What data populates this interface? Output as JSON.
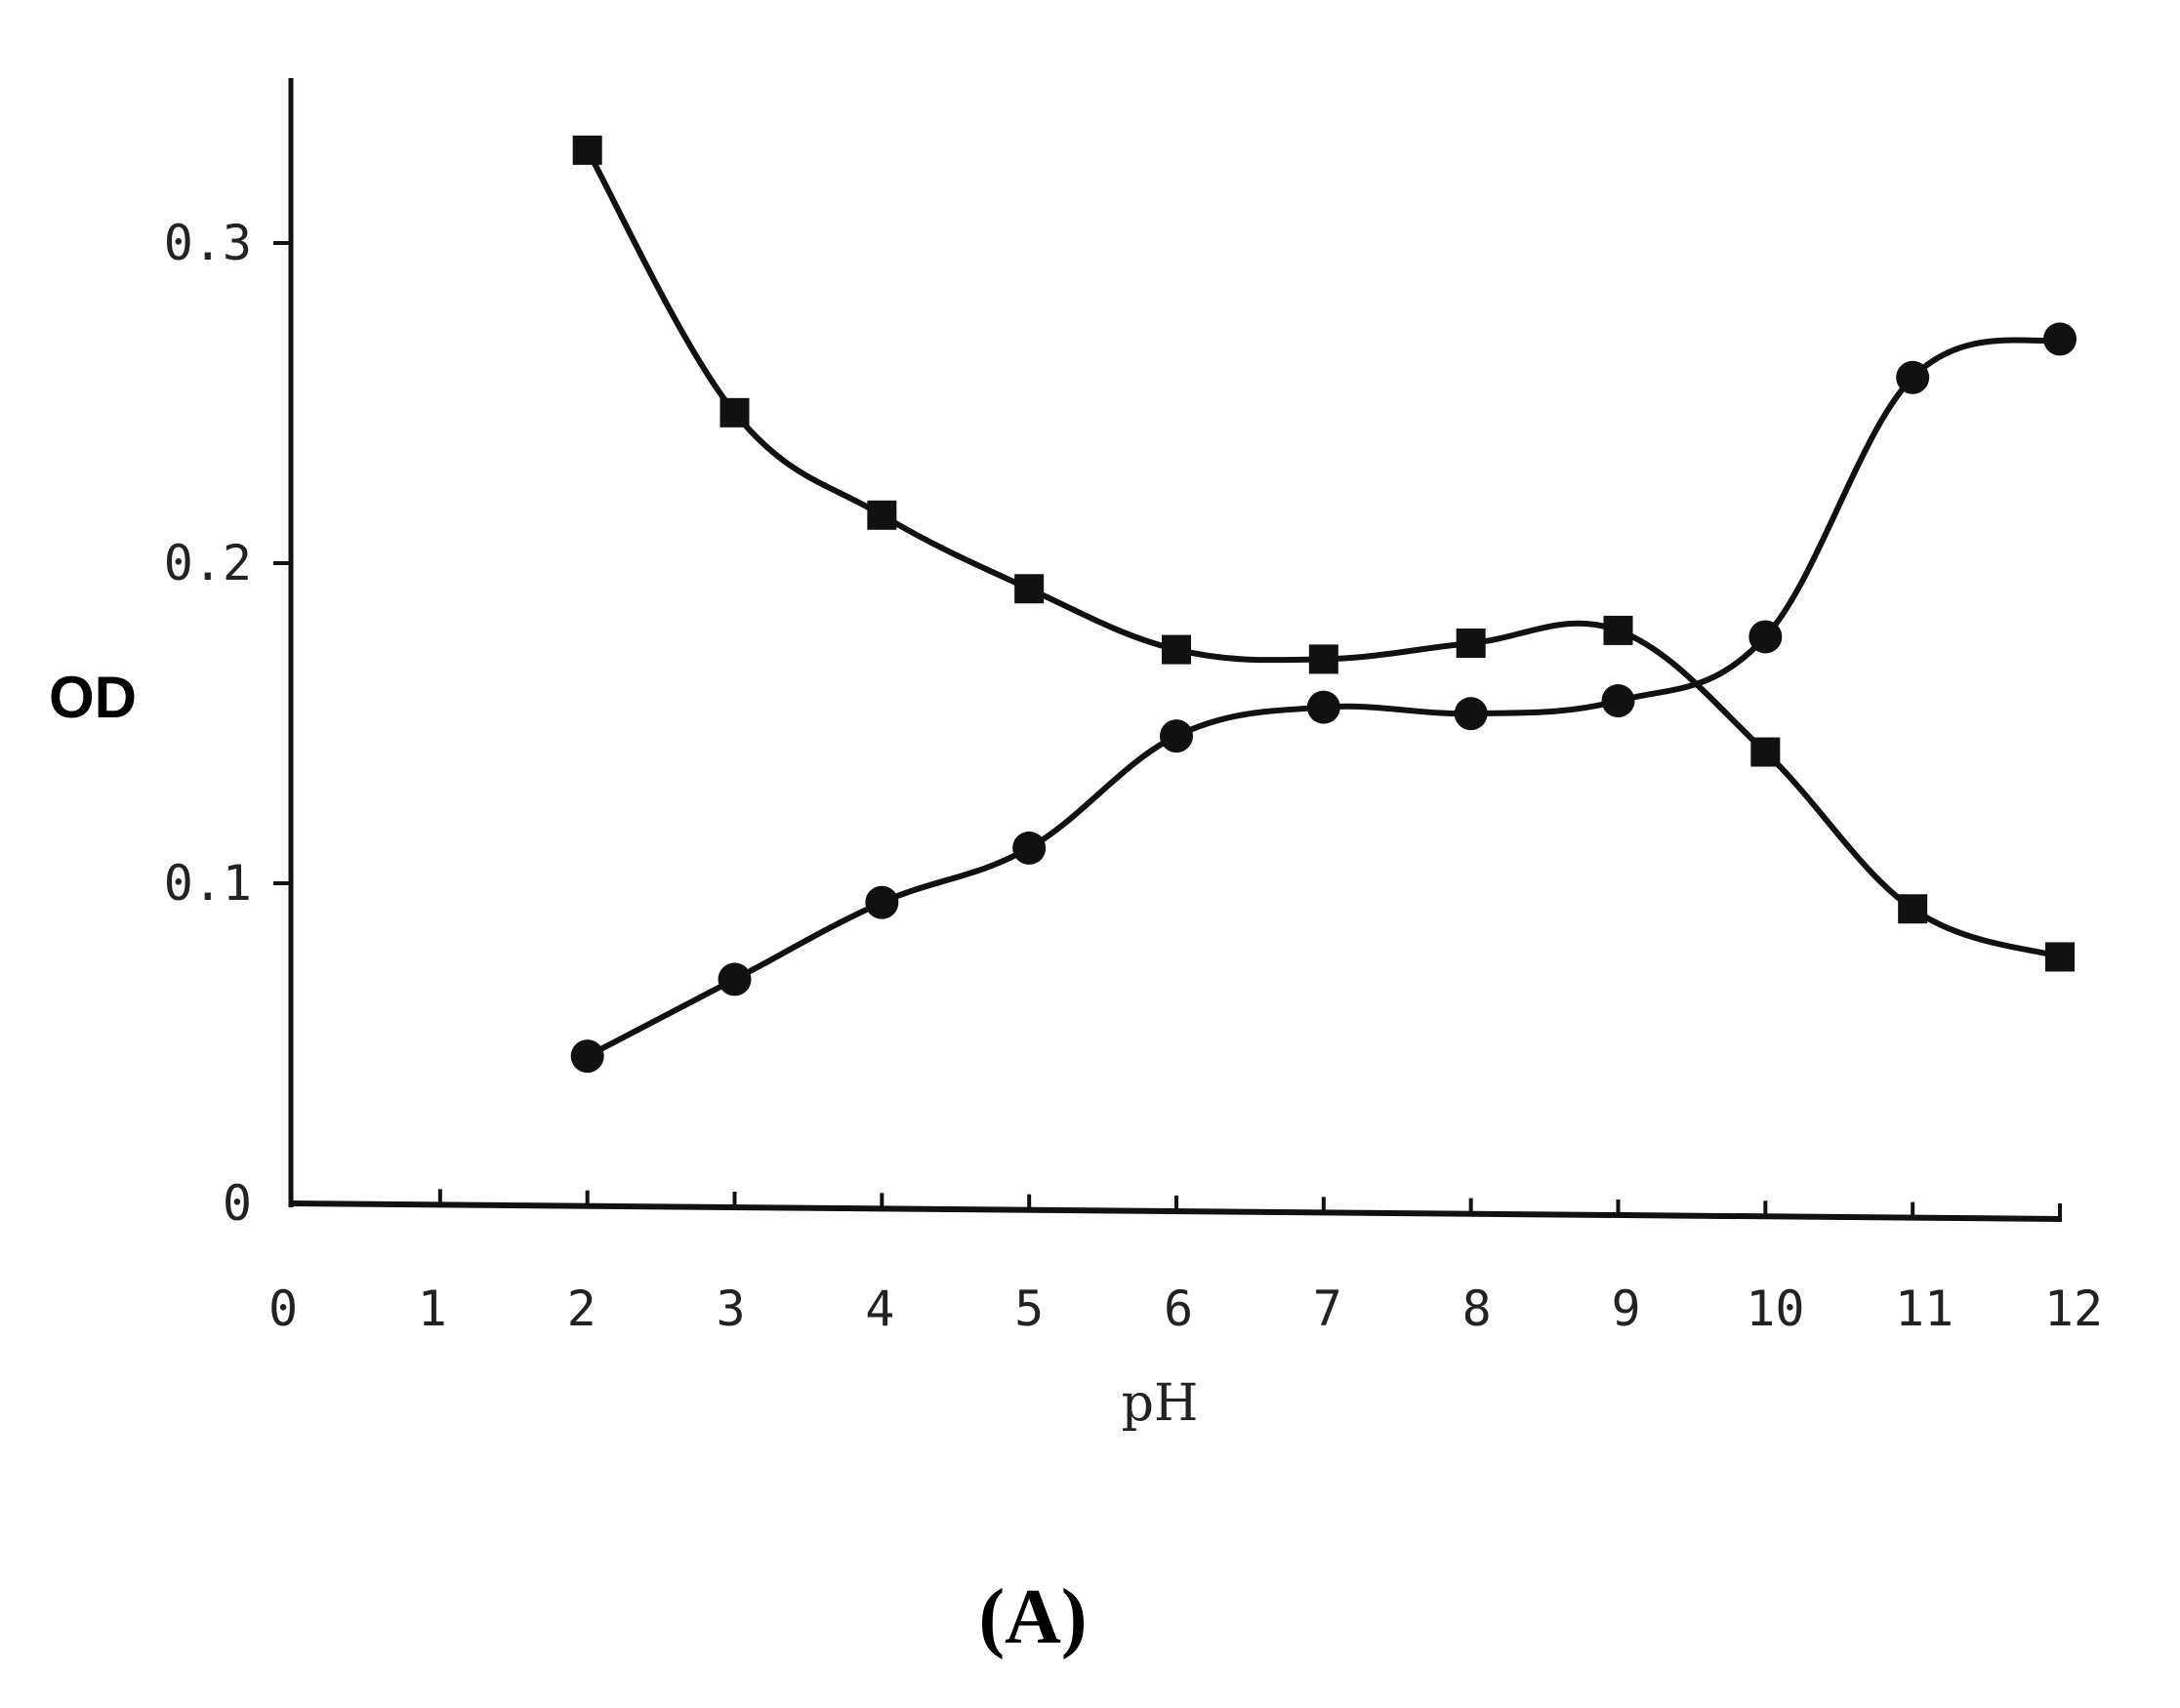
{
  "chart_data": {
    "type": "line",
    "title": "",
    "xlabel": "pH",
    "ylabel": "OD",
    "panel_label": "(A)",
    "xlim": [
      0,
      12
    ],
    "ylim": [
      0,
      0.35
    ],
    "x_ticks": [
      "0",
      "1",
      "2",
      "3",
      "4",
      "5",
      "6",
      "7",
      "8",
      "9",
      "10",
      "11",
      "12"
    ],
    "y_ticks": [
      {
        "value": 0,
        "label": "0"
      },
      {
        "value": 0.1,
        "label": "0.1"
      },
      {
        "value": 0.2,
        "label": "0.2"
      },
      {
        "value": 0.3,
        "label": "0.3"
      }
    ],
    "grid": false,
    "legend": "none",
    "series": [
      {
        "marker": "square",
        "color": "#111111",
        "x": [
          2,
          3,
          4,
          5,
          6,
          7,
          8,
          9,
          10,
          11,
          12
        ],
        "y": [
          0.329,
          0.247,
          0.215,
          0.192,
          0.173,
          0.17,
          0.175,
          0.179,
          0.141,
          0.092,
          0.077
        ]
      },
      {
        "marker": "circle",
        "color": "#111111",
        "x": [
          2,
          3,
          4,
          5,
          6,
          7,
          8,
          9,
          10,
          11,
          12
        ],
        "y": [
          0.046,
          0.07,
          0.094,
          0.111,
          0.146,
          0.155,
          0.153,
          0.157,
          0.177,
          0.258,
          0.27
        ]
      }
    ]
  }
}
